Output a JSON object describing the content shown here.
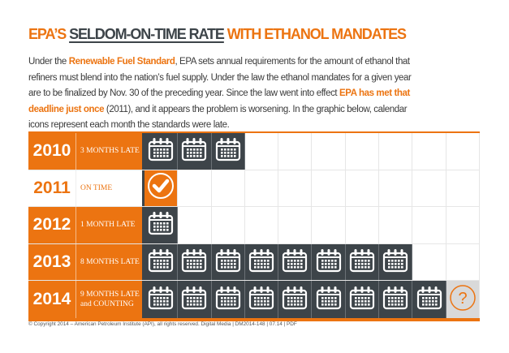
{
  "title": {
    "part1": "EPA’S ",
    "part2": "SELDOM-ON-TIME RATE",
    "part3": " WITH ETHANOL MANDATES"
  },
  "paragraph": [
    [
      {
        "t": "Under the "
      },
      {
        "t": "Renewable Fuel Standard",
        "hl": true
      },
      {
        "t": ", EPA sets annual requirements for the amount of ethanol that"
      }
    ],
    [
      {
        "t": "refiners must blend into the nation’s fuel supply. Under the law the ethanol mandates for a given year"
      }
    ],
    [
      {
        "t": "are to be finalized by Nov. 30 of the preceding year. Since the law went into effect "
      },
      {
        "t": "EPA has met that",
        "hl": true
      }
    ],
    [
      {
        "t": "deadline just once",
        "hl": true
      },
      {
        "t": " (2011), and it appears the problem is worsening. In the graphic below, calendar"
      }
    ],
    [
      {
        "t": "icons represent each month the standards were late."
      }
    ]
  ],
  "colors": {
    "orange": "#ec7411",
    "dark": "#3d4449",
    "unknown": "#d9d9d9"
  },
  "total_columns": 10,
  "rows": [
    {
      "year": "2010",
      "status": "3 MONTHS LATE",
      "months_late": 3,
      "style": "orange"
    },
    {
      "year": "2011",
      "status": "ON TIME",
      "months_late": 0,
      "on_time": true,
      "style": "white"
    },
    {
      "year": "2012",
      "status": "1 MONTH LATE",
      "months_late": 1,
      "style": "orange"
    },
    {
      "year": "2013",
      "status": "8 MONTHS LATE",
      "months_late": 8,
      "style": "orange"
    },
    {
      "year": "2014",
      "status": "9 MONTHS LATE and COUNTING",
      "status_line1": "9 MONTHS LATE",
      "status_line2": "and COUNTING",
      "months_late": 9,
      "unknown": true,
      "style": "orange"
    }
  ],
  "icons": {
    "late": "calendar-icon",
    "on_time": "checkmark-circle-icon",
    "unknown": "question-mark-circle-icon"
  },
  "footer": "© Copyright 2014 – American Petroleum Institute (API), all rights reserved. Digital Media | DM2014-148 | 07.14 | PDF"
}
